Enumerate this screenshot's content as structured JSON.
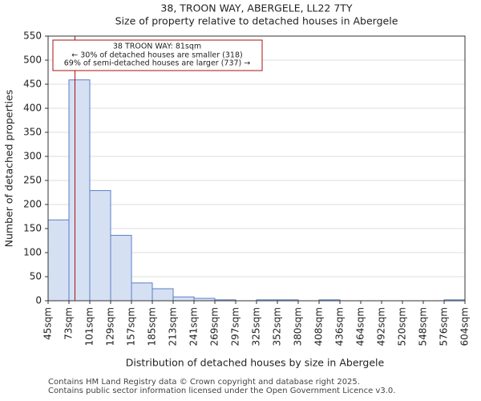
{
  "chart_data": {
    "type": "bar",
    "title": "38, TROON WAY, ABERGELE, LL22 7TY",
    "subtitle": "Size of property relative to detached houses in Abergele",
    "xlabel": "Distribution of detached houses by size in Abergele",
    "ylabel": "Number of detached properties",
    "ylim": [
      0,
      550
    ],
    "yticks": [
      0,
      50,
      100,
      150,
      200,
      250,
      300,
      350,
      400,
      450,
      500,
      550
    ],
    "bin_edges": [
      45,
      73,
      101,
      129,
      157,
      185,
      213,
      241,
      269,
      297,
      325,
      352,
      380,
      408,
      436,
      464,
      492,
      520,
      548,
      576,
      604
    ],
    "tick_labels": [
      "45sqm",
      "73sqm",
      "101sqm",
      "129sqm",
      "157sqm",
      "185sqm",
      "213sqm",
      "241sqm",
      "269sqm",
      "297sqm",
      "325sqm",
      "352sqm",
      "380sqm",
      "408sqm",
      "436sqm",
      "464sqm",
      "492sqm",
      "520sqm",
      "548sqm",
      "576sqm",
      "604sqm"
    ],
    "values": [
      168,
      459,
      229,
      136,
      37,
      25,
      8,
      5,
      2,
      0,
      2,
      2,
      0,
      2,
      0,
      0,
      0,
      0,
      0,
      2
    ],
    "bar_color": "#d6e0f3",
    "bar_edge_color": "#5b7fc7",
    "marker": {
      "value": 81,
      "color": "#aa1111",
      "lines": [
        "38 TROON WAY: 81sqm",
        "← 30% of detached houses are smaller (318)",
        "69% of semi-detached houses are larger (737) →"
      ]
    },
    "footer": [
      "Contains HM Land Registry data © Crown copyright and database right 2025.",
      "Contains public sector information licensed under the Open Government Licence v3.0."
    ]
  }
}
